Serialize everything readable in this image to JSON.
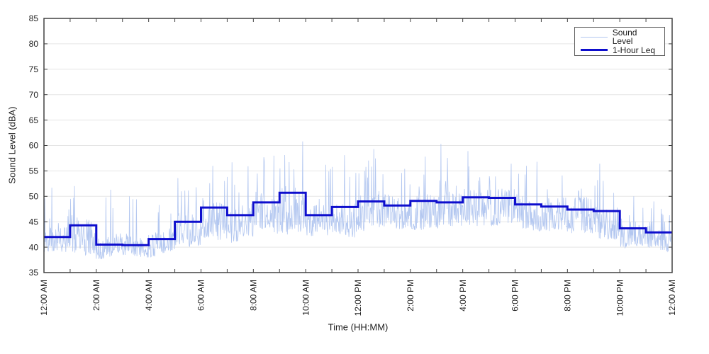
{
  "chart_data": {
    "type": "line",
    "title": "",
    "xlabel": "Time (HH:MM)",
    "ylabel": "Sound Level (dBA)",
    "ylim": [
      35,
      85
    ],
    "xlim_hours": [
      0,
      24
    ],
    "y_ticks": [
      35,
      40,
      45,
      50,
      55,
      60,
      65,
      70,
      75,
      80,
      85
    ],
    "x_major_tick_hours": [
      0,
      2,
      4,
      6,
      8,
      10,
      12,
      14,
      16,
      18,
      20,
      22,
      24
    ],
    "x_tick_labels": [
      "12:00 AM",
      "2:00 AM",
      "4:00 AM",
      "6:00 AM",
      "8:00 AM",
      "10:00 AM",
      "12:00 PM",
      "2:00 PM",
      "4:00 PM",
      "6:00 PM",
      "8:00 PM",
      "10:00 PM",
      "12:00 AM"
    ],
    "x_minor_tick_every_hours": 1,
    "grid": "horizontal",
    "legend": {
      "position": "top-right",
      "entries": [
        {
          "label": "Sound Level",
          "color": "#b3c7f0",
          "line_width": 1
        },
        {
          "label": "1-Hour Leq",
          "color": "#0e0ecd",
          "line_width": 3
        }
      ]
    },
    "series": [
      {
        "name": "1-Hour Leq",
        "type": "step",
        "hours": [
          0,
          1,
          2,
          3,
          4,
          5,
          6,
          7,
          8,
          9,
          10,
          11,
          12,
          13,
          14,
          15,
          16,
          17,
          18,
          19,
          20,
          21,
          22,
          23
        ],
        "values": [
          42.0,
          44.3,
          40.5,
          40.4,
          41.6,
          45.0,
          47.8,
          46.3,
          48.8,
          50.7,
          46.3,
          47.9,
          49.0,
          48.2,
          49.1,
          48.8,
          49.8,
          49.7,
          48.4,
          48.0,
          47.4,
          47.1,
          43.7,
          42.9
        ]
      },
      {
        "name": "Sound Level",
        "type": "noisy_minute_trace",
        "synth": {
          "seed": 42,
          "points_per_hour": 60,
          "hourly_leq": [
            42.0,
            44.3,
            40.5,
            40.4,
            41.6,
            45.0,
            47.8,
            46.3,
            48.8,
            50.7,
            46.3,
            47.9,
            49.0,
            48.2,
            49.1,
            48.8,
            49.8,
            49.7,
            48.4,
            48.0,
            47.4,
            47.1,
            43.7,
            42.9
          ],
          "hourly_band_low": [
            38.6,
            38.8,
            37.9,
            37.9,
            38.4,
            39.6,
            41.8,
            41.2,
            42.8,
            43.0,
            41.8,
            42.4,
            43.4,
            43.4,
            43.8,
            43.5,
            44.4,
            44.3,
            43.4,
            43.3,
            42.4,
            41.8,
            39.8,
            39.4
          ],
          "hourly_peak": [
            51.7,
            52.0,
            51.3,
            50.0,
            48.3,
            53.6,
            56.0,
            56.7,
            58.0,
            60.8,
            56.2,
            58.1,
            59.3,
            55.4,
            57.8,
            60.3,
            58.9,
            56.4,
            56.8,
            54.1,
            51.5,
            56.4,
            50.0,
            49.0
          ]
        }
      }
    ],
    "style": {
      "background": "#ffffff",
      "grid_color": "#e5e5e5",
      "axes_color": "#404040",
      "tick_label_color": "#1f1f1f",
      "trace_color": "#b3c7f0",
      "leq_color": "#0e0ecd"
    }
  }
}
